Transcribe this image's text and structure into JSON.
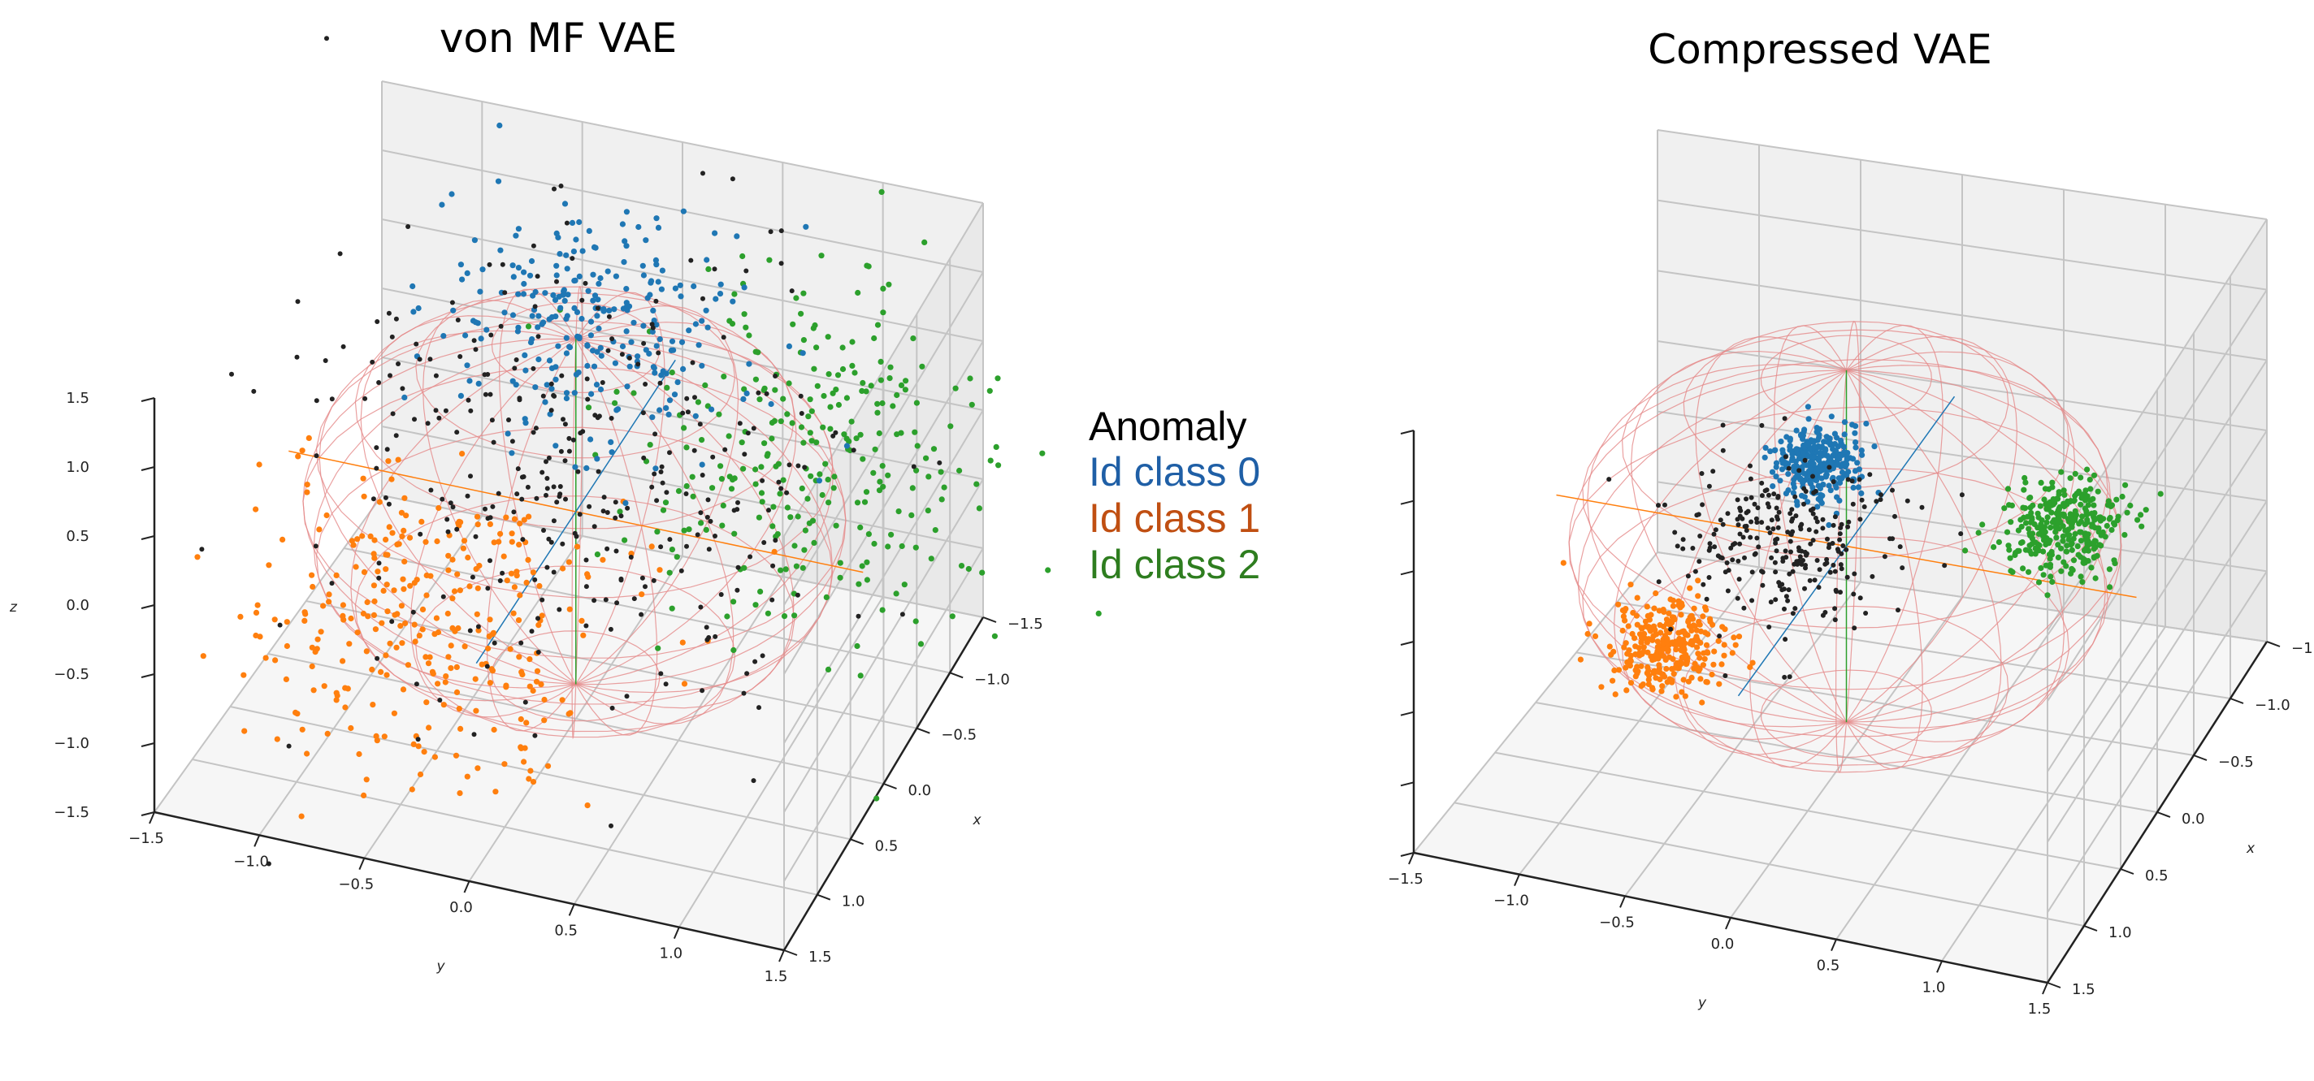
{
  "legend": {
    "entries": [
      {
        "label": "Anomaly",
        "color": "#000000"
      },
      {
        "label": "Id class 0",
        "color": "#1f5fa6"
      },
      {
        "label": "Id class 1",
        "color": "#c04f12"
      },
      {
        "label": "Id class 2",
        "color": "#2e7d1f"
      }
    ]
  },
  "colors": {
    "anomaly": "#222222",
    "class0": "#1f77b4",
    "class1": "#ff7f0e",
    "class2": "#2ca02c",
    "sphere": "#e58a8a",
    "pane": "#f2f2f2",
    "grid": "#c4c4c4"
  },
  "chart_data": [
    {
      "type": "scatter",
      "title": "von MF VAE",
      "xlabel": "x",
      "ylabel": "y",
      "zlabel": "z",
      "xlim": [
        -1.5,
        1.5
      ],
      "ylim": [
        -1.5,
        1.5
      ],
      "zlim": [
        -1.5,
        1.5
      ],
      "ticks": [
        -1.5,
        -1.0,
        -0.5,
        0.0,
        0.5,
        1.0,
        1.5
      ],
      "tick_labels": [
        "−1.5",
        "−1.0",
        "−0.5",
        "0.0",
        "0.5",
        "1.0",
        "1.5"
      ],
      "series": [
        {
          "name": "Id class 0",
          "center": [
            -0.2,
            0.0,
            1.2
          ],
          "spread": 0.35,
          "count": 260
        },
        {
          "name": "Id class 1",
          "center": [
            0.3,
            -0.6,
            -0.8
          ],
          "spread": 0.45,
          "count": 300
        },
        {
          "name": "Id class 2",
          "center": [
            -0.9,
            0.9,
            0.0
          ],
          "spread": 0.45,
          "count": 280
        },
        {
          "name": "Anomaly",
          "center": [
            0.0,
            0.0,
            0.3
          ],
          "spread": 0.65,
          "count": 320
        }
      ],
      "unit_sphere": true
    },
    {
      "type": "scatter",
      "title": "Compressed VAE",
      "xlabel": "x",
      "ylabel": "y",
      "zlabel": "",
      "xlim": [
        -1.5,
        1.5
      ],
      "ylim": [
        -1.5,
        1.5
      ],
      "zlim": [
        -1.5,
        1.5
      ],
      "ticks": [
        -1.5,
        -1.0,
        -0.5,
        0.0,
        0.5,
        1.0,
        1.5
      ],
      "tick_labels": [
        "−1.5",
        "−1.0",
        "−0.5",
        "0.0",
        "0.5",
        "1.0",
        "1.5"
      ],
      "series": [
        {
          "name": "Id class 0",
          "center": [
            0.1,
            -0.1,
            0.65
          ],
          "spread": 0.1,
          "count": 320
        },
        {
          "name": "Id class 1",
          "center": [
            0.7,
            -0.6,
            -0.35
          ],
          "spread": 0.13,
          "count": 300
        },
        {
          "name": "Id class 2",
          "center": [
            -0.4,
            0.9,
            0.05
          ],
          "spread": 0.14,
          "count": 320
        },
        {
          "name": "Anomaly",
          "center": [
            0.2,
            -0.2,
            0.15
          ],
          "spread": 0.25,
          "count": 260
        }
      ],
      "unit_sphere": true
    }
  ]
}
